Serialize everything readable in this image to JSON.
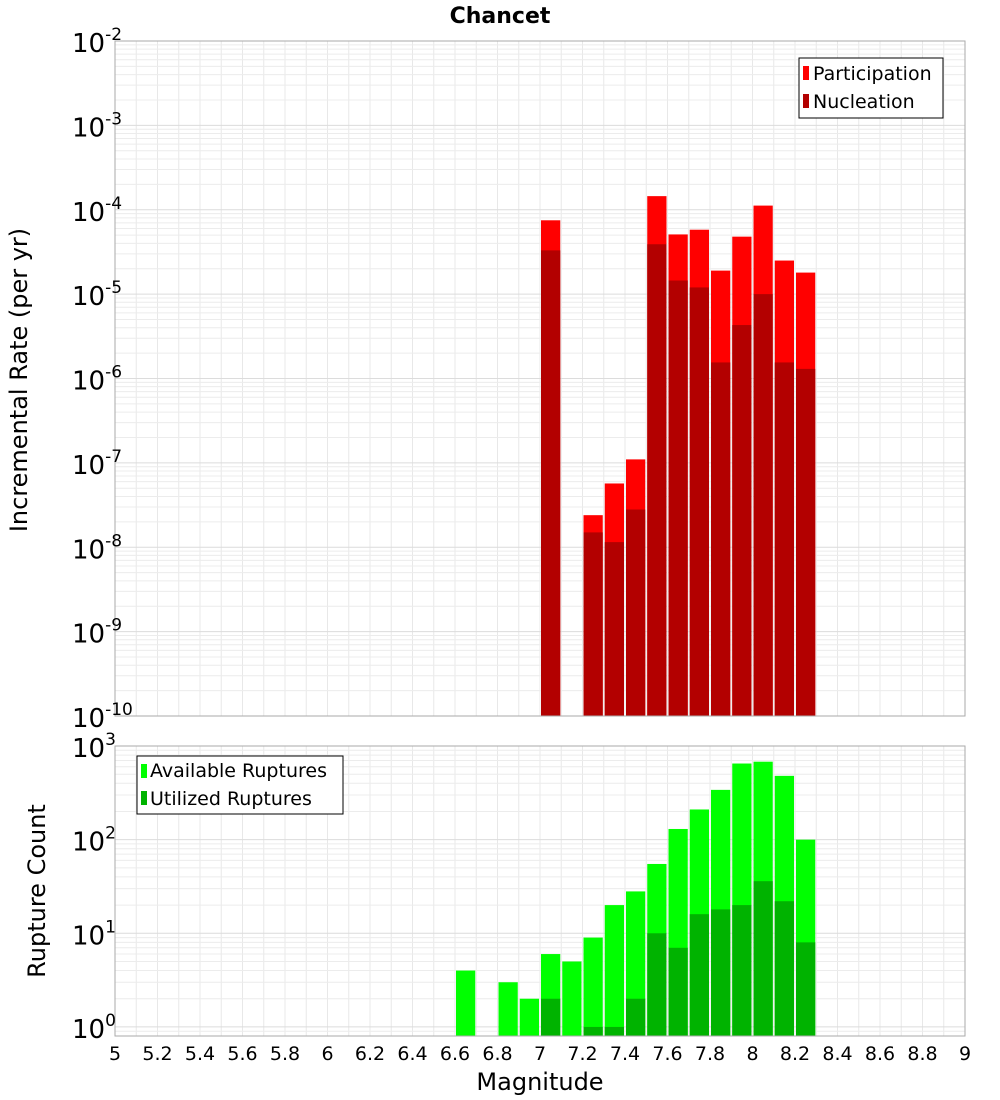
{
  "chart_data": [
    {
      "type": "bar",
      "title": "Chancet",
      "xlabel": "",
      "ylabel": "Incremental Rate (per yr)",
      "y_scale": "log",
      "ylim": [
        1e-10,
        0.01
      ],
      "xlim": [
        5,
        9
      ],
      "y_tick_exponents": [
        "-10",
        "-9",
        "-8",
        "-7",
        "-6",
        "-5",
        "-4",
        "-3",
        "-2"
      ],
      "y_tick_base": "10",
      "grid": true,
      "legend_position": "top-right",
      "bar_width": 0.1,
      "x": [
        7.0,
        7.2,
        7.3,
        7.4,
        7.5,
        7.6,
        7.7,
        7.8,
        7.9,
        8.0,
        8.1,
        8.2
      ],
      "series": [
        {
          "name": "Participation",
          "color": "#ff0000",
          "values": [
            7.5e-05,
            2.4e-08,
            5.7e-08,
            1.1e-07,
            0.000145,
            5.1e-05,
            5.8e-05,
            1.9e-05,
            4.8e-05,
            0.000112,
            2.5e-05,
            1.8e-05
          ]
        },
        {
          "name": "Nucleation",
          "color": "#b30000",
          "values": [
            3.3e-05,
            1.5e-08,
            1.15e-08,
            2.8e-08,
            3.9e-05,
            1.45e-05,
            1.2e-05,
            1.55e-06,
            4.3e-06,
            1e-05,
            1.55e-06,
            1.3e-06
          ]
        }
      ]
    },
    {
      "type": "bar",
      "xlabel": "Magnitude",
      "ylabel": "Rupture Count",
      "y_scale": "log",
      "ylim": [
        0.8,
        1000
      ],
      "xlim": [
        5,
        9
      ],
      "y_tick_exponents": [
        "0",
        "1",
        "2",
        "3"
      ],
      "y_tick_base": "10",
      "x_ticks": [
        "5",
        "5.2",
        "5.4",
        "5.6",
        "5.8",
        "6",
        "6.2",
        "6.4",
        "6.6",
        "6.8",
        "7",
        "7.2",
        "7.4",
        "7.6",
        "7.8",
        "8",
        "8.2",
        "8.4",
        "8.6",
        "8.8",
        "9"
      ],
      "grid": true,
      "legend_position": "top-left",
      "bar_width": 0.1,
      "x": [
        6.6,
        6.8,
        6.9,
        7.0,
        7.1,
        7.2,
        7.3,
        7.4,
        7.5,
        7.6,
        7.7,
        7.8,
        7.9,
        8.0,
        8.1,
        8.2
      ],
      "series": [
        {
          "name": "Available Ruptures",
          "color": "#00ff00",
          "values": [
            4,
            3,
            2,
            6,
            5,
            9,
            20,
            28,
            55,
            130,
            210,
            340,
            650,
            680,
            480,
            100
          ]
        },
        {
          "name": "Utilized Ruptures",
          "color": "#00b300",
          "values": [
            null,
            null,
            null,
            2,
            null,
            1,
            1,
            2,
            10,
            7,
            16,
            18,
            20,
            36,
            22,
            8
          ]
        }
      ]
    }
  ]
}
